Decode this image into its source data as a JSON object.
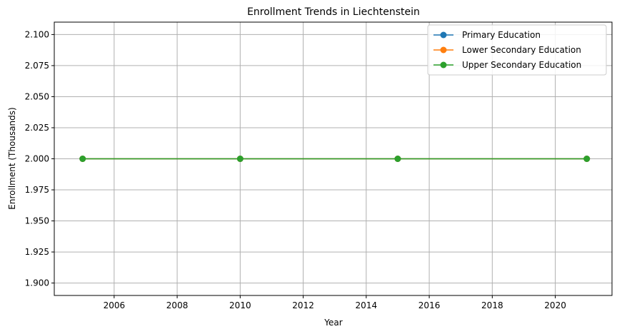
{
  "chart_data": {
    "type": "line",
    "title": "Enrollment Trends in Liechtenstein",
    "xlabel": "Year",
    "ylabel": "Enrollment (Thousands)",
    "xlim": [
      2004.1,
      2021.8
    ],
    "ylim": [
      1.89,
      2.11
    ],
    "xticks": [
      2006,
      2008,
      2010,
      2012,
      2014,
      2016,
      2018,
      2020
    ],
    "yticks": [
      1.9,
      1.925,
      1.95,
      1.975,
      2.0,
      2.025,
      2.05,
      2.075,
      2.1
    ],
    "ytick_labels": [
      "1.900",
      "1.925",
      "1.950",
      "1.975",
      "2.000",
      "2.025",
      "2.050",
      "2.075",
      "2.100"
    ],
    "grid": true,
    "legend_position": "top-right",
    "series": [
      {
        "name": "Primary Education",
        "color": "#1f77b4",
        "x": [
          2005,
          2010,
          2015,
          2021
        ],
        "values": [
          2.0,
          2.0,
          2.0,
          2.0
        ]
      },
      {
        "name": "Lower Secondary Education",
        "color": "#ff7f0e",
        "x": [
          2005,
          2010,
          2015,
          2021
        ],
        "values": [
          2.0,
          2.0,
          2.0,
          2.0
        ]
      },
      {
        "name": "Upper Secondary Education",
        "color": "#2ca02c",
        "x": [
          2005,
          2010,
          2015,
          2021
        ],
        "values": [
          2.0,
          2.0,
          2.0,
          2.0
        ]
      }
    ]
  }
}
